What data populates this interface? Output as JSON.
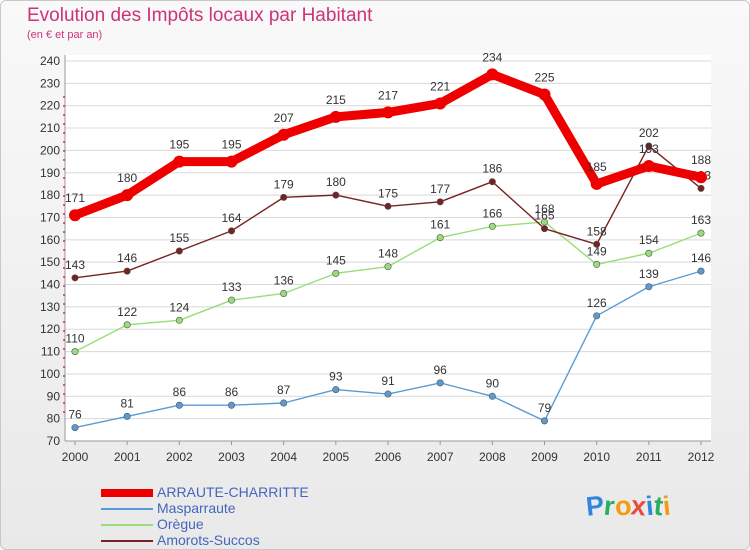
{
  "chart_data": {
    "type": "line",
    "title": "Evolution des Impôts locaux par Habitant",
    "subtitle": "(en € et par an)",
    "xlabel": "",
    "ylabel": "",
    "categories": [
      "2000",
      "2001",
      "2002",
      "2003",
      "2004",
      "2005",
      "2006",
      "2007",
      "2008",
      "2009",
      "2010",
      "2011",
      "2012"
    ],
    "ylim": [
      70,
      240
    ],
    "yticks": [
      70,
      80,
      90,
      100,
      110,
      120,
      130,
      140,
      150,
      160,
      170,
      180,
      190,
      200,
      210,
      220,
      230,
      240
    ],
    "grid": "horizontal",
    "legend_position": "bottom",
    "series": [
      {
        "name": "ARRAUTE-CHARRITTE",
        "color": "#ee0000",
        "values": [
          171,
          180,
          195,
          195,
          207,
          215,
          217,
          221,
          234,
          225,
          185,
          193,
          188
        ],
        "labels": [
          "171",
          "180",
          "195",
          "195",
          "207",
          "215",
          "217",
          "221",
          "234",
          "225",
          "185",
          "193",
          "188"
        ]
      },
      {
        "name": "Masparraute",
        "color": "#5b9bd5",
        "values": [
          76,
          81,
          86,
          86,
          87,
          93,
          91,
          96,
          90,
          79,
          126,
          139,
          146
        ],
        "labels": [
          "76",
          "81",
          "86",
          "86",
          "87",
          "93",
          "91",
          "96",
          "90",
          "79",
          "126",
          "139",
          "146"
        ]
      },
      {
        "name": "Orègue",
        "color": "#99dd77",
        "values": [
          110,
          122,
          124,
          133,
          136,
          145,
          148,
          161,
          166,
          168,
          149,
          154,
          163
        ],
        "labels": [
          "110",
          "122",
          "124",
          "133",
          "136",
          "145",
          "148",
          "161",
          "166",
          "168",
          "149",
          "154",
          "163"
        ]
      },
      {
        "name": "Amorots-Succos",
        "color": "#772222",
        "values": [
          143,
          146,
          155,
          164,
          179,
          180,
          175,
          177,
          186,
          165,
          158,
          202,
          183
        ],
        "labels": [
          "143",
          "146",
          "155",
          "164",
          "179",
          "180",
          "175",
          "177",
          "186",
          "165",
          "158",
          "202",
          "183"
        ]
      }
    ]
  },
  "logo": {
    "text": "Proxiti",
    "letters": [
      {
        "ch": "P",
        "color": "#2e86de"
      },
      {
        "ch": "r",
        "color": "#27ae60"
      },
      {
        "ch": "o",
        "color": "#f39c12"
      },
      {
        "ch": "x",
        "color": "#e74c3c"
      },
      {
        "ch": "i",
        "color": "#2e86de"
      },
      {
        "ch": "t",
        "color": "#27ae60"
      },
      {
        "ch": "i",
        "color": "#f39c12"
      }
    ]
  }
}
